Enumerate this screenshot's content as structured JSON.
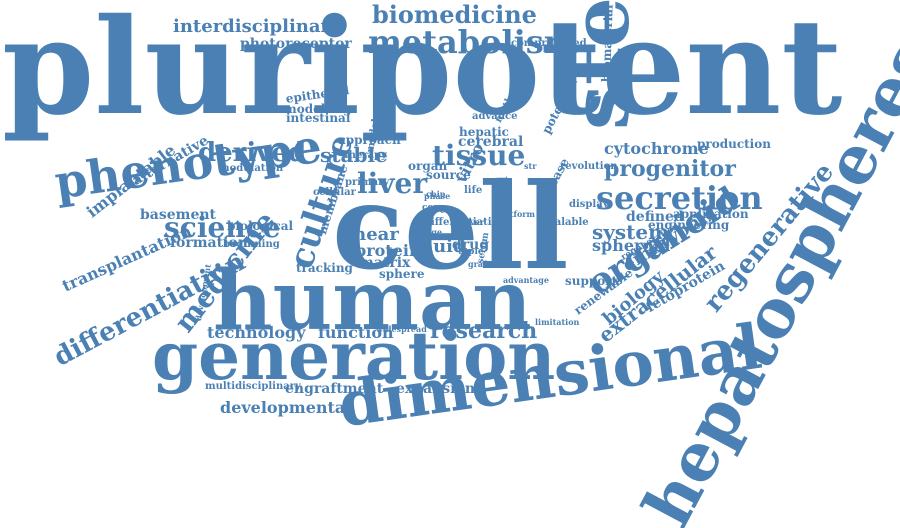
{
  "cloud": {
    "color": "#4a80b3",
    "words": [
      "pluripotent",
      "cell",
      "human",
      "generation",
      "dimensional",
      "stem",
      "hepatospheres",
      "phenotype",
      "differentiation",
      "culture",
      "organoid",
      "secretion",
      "regenerative",
      "metabolism",
      "biomedicine",
      "interdisciplinary",
      "photoreceptor",
      "derived",
      "liver",
      "tissue",
      "stable",
      "progenitor",
      "cytochrome",
      "science",
      "medicine",
      "research",
      "technology",
      "function",
      "embryonic",
      "extracellular",
      "biology",
      "fetoprotein",
      "implantable",
      "alternative",
      "transplantation",
      "basement",
      "formation",
      "developmental",
      "engraftment",
      "expansion",
      "multidisciplinary",
      "modelling",
      "epithelial",
      "intestinal",
      "compromised",
      "biomaterial",
      "production",
      "application",
      "engineering",
      "system",
      "spheroid",
      "defined",
      "shear",
      "protein",
      "matrix",
      "fluid",
      "drug",
      "retinal",
      "vitro",
      "membrane",
      "tracking",
      "approach",
      "cerebral",
      "hepatic",
      "support",
      "renewable",
      "disease",
      "sheet",
      "revolution",
      "display",
      "scalable",
      "sphere",
      "potential",
      "method",
      "modulation",
      "biological",
      "beginning",
      "organ",
      "source",
      "primary",
      "therapy",
      "model",
      "cellular",
      "advance",
      "chip",
      "graft",
      "topic",
      "life",
      "cure",
      "core",
      "limitation",
      "advantage",
      "widespread",
      "development",
      "serum",
      "regeneration",
      "differentiation",
      "str",
      "platform",
      "stage",
      "phase",
      "liver",
      "model"
    ]
  }
}
